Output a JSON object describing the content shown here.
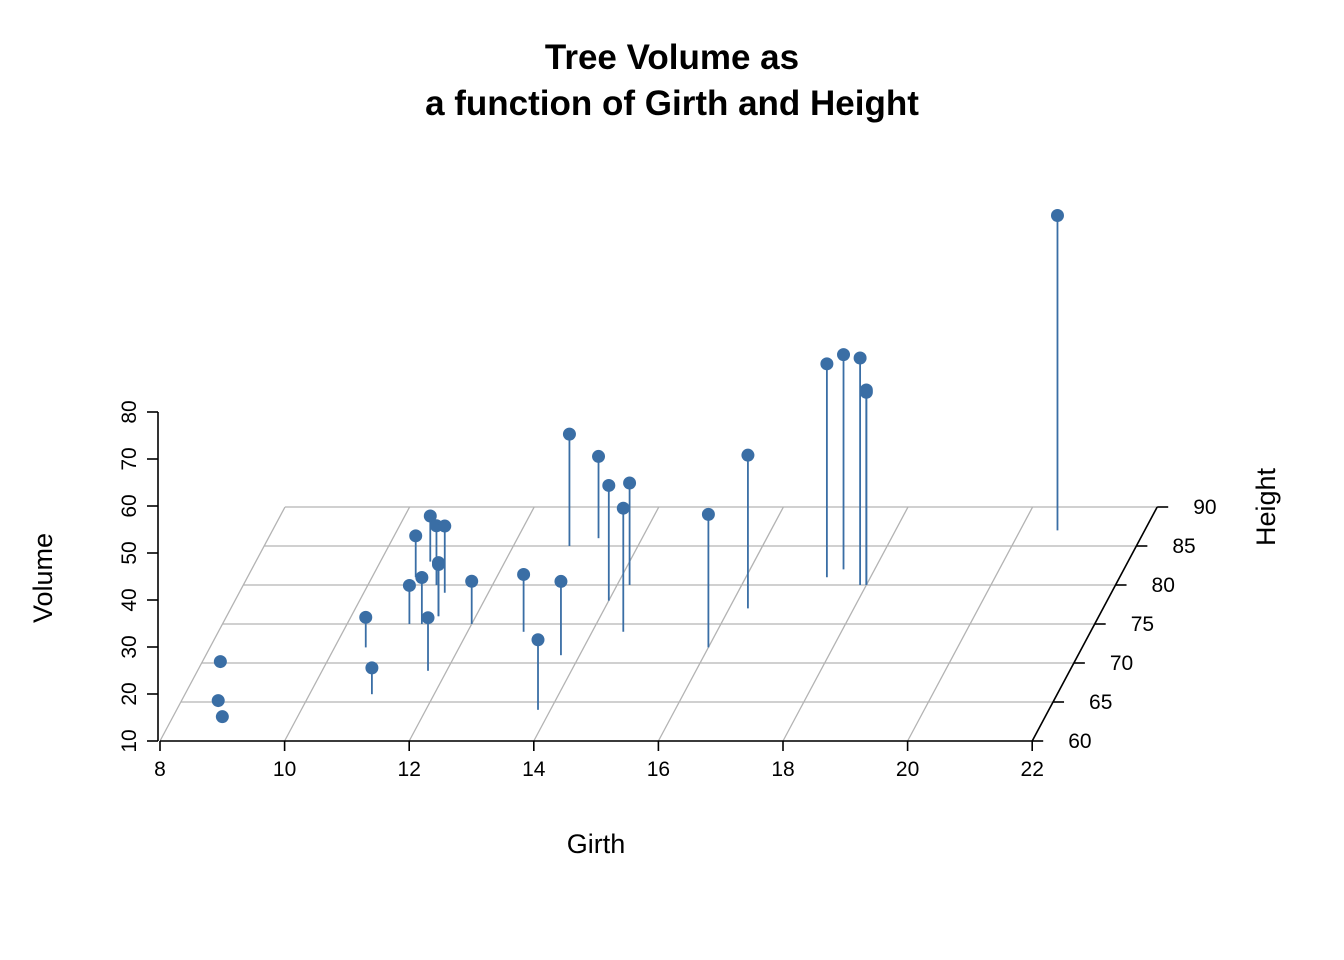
{
  "chart_data": {
    "type": "scatter",
    "subtype": "3d-scatter-with-drop-lines",
    "title_lines": [
      "Tree Volume as",
      "a function of Girth and Height"
    ],
    "xlabel": "Girth",
    "ylabel": "Height",
    "zlabel": "Volume",
    "xlim": [
      8,
      22
    ],
    "ylim": [
      60,
      90
    ],
    "zlim": [
      10,
      80
    ],
    "x_ticks": [
      "8",
      "10",
      "12",
      "14",
      "16",
      "18",
      "20",
      "22"
    ],
    "y_ticks": [
      "60",
      "65",
      "70",
      "75",
      "80",
      "85",
      "90"
    ],
    "z_ticks": [
      "10",
      "20",
      "30",
      "40",
      "50",
      "60",
      "70",
      "80"
    ],
    "grid": true,
    "point_color": "#3a6ea5",
    "grid_color": "#b3b3b3",
    "points": [
      {
        "girth": 8.3,
        "height": 70,
        "volume": 10.3
      },
      {
        "girth": 8.6,
        "height": 65,
        "volume": 10.3
      },
      {
        "girth": 8.8,
        "height": 63,
        "volume": 10.2
      },
      {
        "girth": 10.5,
        "height": 72,
        "volume": 16.4
      },
      {
        "girth": 10.7,
        "height": 81,
        "volume": 18.8
      },
      {
        "girth": 10.8,
        "height": 83,
        "volume": 19.7
      },
      {
        "girth": 11.0,
        "height": 66,
        "volume": 15.6
      },
      {
        "girth": 11.0,
        "height": 75,
        "volume": 18.2
      },
      {
        "girth": 11.1,
        "height": 80,
        "volume": 22.6
      },
      {
        "girth": 11.2,
        "height": 75,
        "volume": 19.9
      },
      {
        "girth": 11.3,
        "height": 79,
        "volume": 24.2
      },
      {
        "girth": 11.4,
        "height": 76,
        "volume": 21.0
      },
      {
        "girth": 11.4,
        "height": 76,
        "volume": 21.4
      },
      {
        "girth": 11.7,
        "height": 69,
        "volume": 21.3
      },
      {
        "girth": 12.0,
        "height": 75,
        "volume": 19.1
      },
      {
        "girth": 12.9,
        "height": 74,
        "volume": 22.2
      },
      {
        "girth": 12.9,
        "height": 85,
        "volume": 33.8
      },
      {
        "girth": 13.3,
        "height": 86,
        "volume": 27.4
      },
      {
        "girth": 13.7,
        "height": 71,
        "volume": 25.7
      },
      {
        "girth": 13.8,
        "height": 64,
        "volume": 24.9
      },
      {
        "girth": 14.0,
        "height": 78,
        "volume": 34.5
      },
      {
        "girth": 14.2,
        "height": 80,
        "volume": 31.7
      },
      {
        "girth": 14.5,
        "height": 74,
        "volume": 36.3
      },
      {
        "girth": 16.0,
        "height": 72,
        "volume": 38.3
      },
      {
        "girth": 16.3,
        "height": 77,
        "volume": 42.6
      },
      {
        "girth": 17.3,
        "height": 81,
        "volume": 55.4
      },
      {
        "girth": 17.5,
        "height": 82,
        "volume": 55.7
      },
      {
        "girth": 17.9,
        "height": 80,
        "volume": 58.3
      },
      {
        "girth": 18.0,
        "height": 80,
        "volume": 51.5
      },
      {
        "girth": 18.0,
        "height": 80,
        "volume": 51.0
      },
      {
        "girth": 20.6,
        "height": 87,
        "volume": 77.0
      }
    ]
  }
}
